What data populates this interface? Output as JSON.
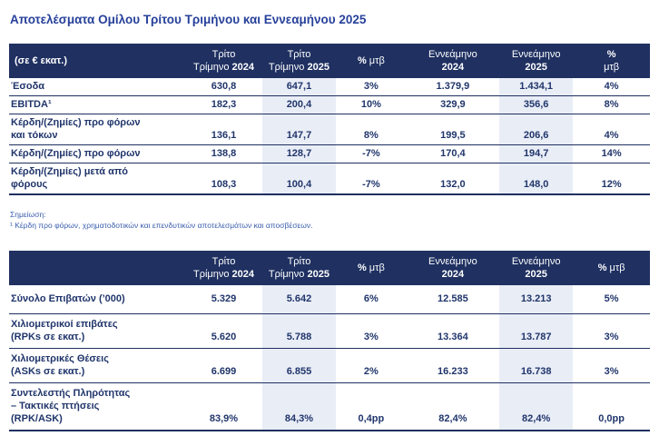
{
  "title": "Αποτελέσματα Ομίλου Τρίτου Τριμήνου και Εννεαμήνου 2025",
  "colors": {
    "title_text": "#27419b",
    "header_bg": "#1f3061",
    "header_text": "#ffffff",
    "body_text": "#20356b",
    "shaded_column_bg": "#e9edf6",
    "row_border": "#1f3061",
    "footnote_text": "#3a5dad"
  },
  "column_headers": {
    "q3_2024": {
      "line1": "Τρίτο",
      "line2": "Τρίμηνο",
      "year": "2024"
    },
    "q3_2025": {
      "line1": "Τρίτο",
      "line2": "Τρίμηνο",
      "year": "2025"
    },
    "chg": {
      "pct": "%",
      "label": "μτβ"
    },
    "nm_2024": {
      "line1": "Εννεάμηνο",
      "year": "2024"
    },
    "nm_2025": {
      "line1": "Εννεάμηνο",
      "year": "2025"
    }
  },
  "financial_table": {
    "unit_label": "(σε € εκατ.)",
    "rows": [
      {
        "label": "Έσοδα",
        "q3_24": "630,8",
        "q3_25": "647,1",
        "chg_q3": "3%",
        "nm_24": "1.379,9",
        "nm_25": "1.434,1",
        "chg_nm": "4%"
      },
      {
        "label": "EBITDA¹",
        "q3_24": "182,3",
        "q3_25": "200,4",
        "chg_q3": "10%",
        "nm_24": "329,9",
        "nm_25": "356,6",
        "chg_nm": "8%"
      },
      {
        "label": "Κέρδη/(Ζημίες) προ φόρων\nκαι τόκων",
        "q3_24": "136,1",
        "q3_25": "147,7",
        "chg_q3": "8%",
        "nm_24": "199,5",
        "nm_25": "206,6",
        "chg_nm": "4%"
      },
      {
        "label": "Κέρδη/(Ζημίες) προ φόρων",
        "q3_24": "138,8",
        "q3_25": "128,7",
        "chg_q3": "-7%",
        "nm_24": "170,4",
        "nm_25": "194,7",
        "chg_nm": "14%"
      },
      {
        "label": "Κέρδη/(Ζημίες) μετά από\nφόρους",
        "q3_24": "108,3",
        "q3_25": "100,4",
        "chg_q3": "-7%",
        "nm_24": "132,0",
        "nm_25": "148,0",
        "chg_nm": "12%"
      }
    ]
  },
  "footnote": {
    "heading": "Σημείωση:",
    "text": "¹ Κέρδη προ φόρων, χρηματοδοτικών και επενδυτικών αποτελεσμάτων και αποσβέσεων."
  },
  "traffic_table": {
    "rows": [
      {
        "label": "Σύνολο Επιβατών (’000)",
        "q3_24": "5.329",
        "q3_25": "5.642",
        "chg_q3": "6%",
        "nm_24": "12.585",
        "nm_25": "13.213",
        "chg_nm": "5%"
      },
      {
        "label": "Χιλιομετρικοί επιβάτες\n(RPKs σε εκατ.)",
        "q3_24": "5.620",
        "q3_25": "5.788",
        "chg_q3": "3%",
        "nm_24": "13.364",
        "nm_25": "13.787",
        "chg_nm": "3%"
      },
      {
        "label": "Χιλιομετρικές Θέσεις\n(ASKs σε εκατ.)",
        "q3_24": "6.699",
        "q3_25": "6.855",
        "chg_q3": "2%",
        "nm_24": "16.233",
        "nm_25": "16.738",
        "chg_nm": "3%"
      },
      {
        "label": "Συντελεστής Πληρότητας\n– Τακτικές πτήσεις\n(RPK/ASK)",
        "q3_24": "83,9%",
        "q3_25": "84,3%",
        "chg_q3": "0,4pp",
        "nm_24": "82,4%",
        "nm_25": "82,4%",
        "chg_nm": "0,0pp"
      }
    ]
  }
}
